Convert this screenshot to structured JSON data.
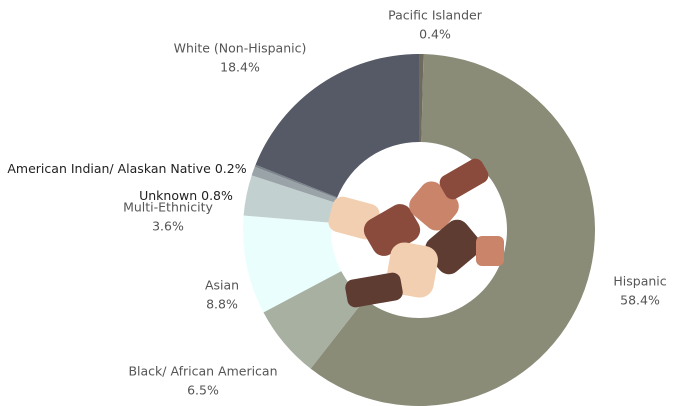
{
  "chart_data": {
    "type": "pie",
    "donut": true,
    "categories": [
      "Pacific Islander",
      "Hispanic",
      "Black/ African American",
      "Asian",
      "Multi-Ethnicity",
      "Unknown",
      "American Indian/ Alaskan Native",
      "White (Non-Hispanic)"
    ],
    "values": [
      0.4,
      58.4,
      6.5,
      8.8,
      3.6,
      0.8,
      0.2,
      18.4
    ],
    "value_labels": [
      "0.4%",
      "58.4%",
      "6.5%",
      "8.8%",
      "3.6%",
      "0.8%",
      "0.2%",
      "18.4%"
    ],
    "colors": [
      "#6e6a5e",
      "#8a8c78",
      "#a8b0a2",
      "#eafffd",
      "#c2d0d0",
      "#9aa4a8",
      "#7c848c",
      "#565a66"
    ]
  }
}
